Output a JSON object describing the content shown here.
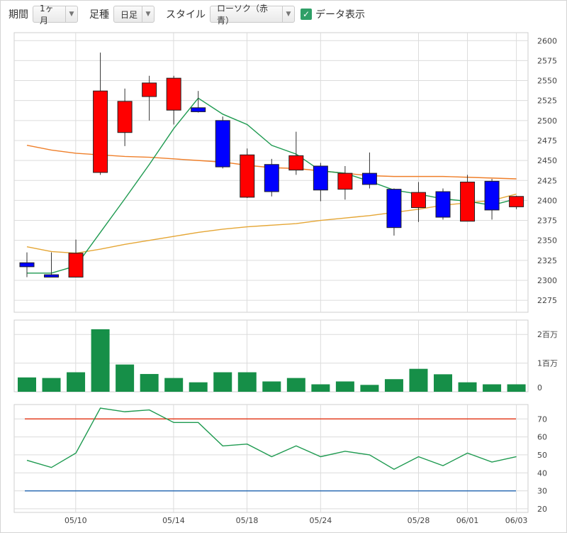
{
  "toolbar": {
    "period_label": "期間",
    "period_value": "1ヶ月",
    "foot_label": "足種",
    "foot_value": "日足",
    "style_label": "スタイル",
    "style_value": "ローソク（赤青）",
    "data_display_label": "データ表示",
    "data_display_checked": true
  },
  "colors": {
    "up_candle": "#ff0000",
    "down_candle": "#0000ff",
    "ma_short": "#1e9a50",
    "ma_mid": "#ef7f2a",
    "ma_long": "#e5a635",
    "volume_bar": "#168f48",
    "upper_band": "#e34224",
    "lower_band": "#2a6bb3",
    "grid": "#dcdcdc"
  },
  "chart_data": [
    {
      "type": "candlestick",
      "x_tick_labels": [
        "05/10",
        "05/14",
        "05/18",
        "05/24",
        "05/28",
        "06/01",
        "06/03"
      ],
      "y_tick_labels": [
        "2600",
        "2575",
        "2550",
        "2525",
        "2500",
        "2475",
        "2450",
        "2425",
        "2400",
        "2375",
        "2350",
        "2325",
        "2300",
        "2275"
      ],
      "ylim": [
        2260,
        2610
      ],
      "candles": [
        {
          "open": 2322,
          "high": 2335,
          "low": 2304,
          "close": 2317
        },
        {
          "open": 2307,
          "high": 2335,
          "low": 2305,
          "close": 2304
        },
        {
          "open": 2304,
          "high": 2351,
          "low": 2304,
          "close": 2334
        },
        {
          "open": 2435,
          "high": 2585,
          "low": 2432,
          "close": 2537
        },
        {
          "open": 2485,
          "high": 2540,
          "low": 2468,
          "close": 2524
        },
        {
          "open": 2530,
          "high": 2556,
          "low": 2500,
          "close": 2547
        },
        {
          "open": 2513,
          "high": 2556,
          "low": 2495,
          "close": 2553
        },
        {
          "open": 2516,
          "high": 2537,
          "low": 2510,
          "close": 2511
        },
        {
          "open": 2500,
          "high": 2505,
          "low": 2440,
          "close": 2442
        },
        {
          "open": 2404,
          "high": 2465,
          "low": 2403,
          "close": 2457
        },
        {
          "open": 2445,
          "high": 2452,
          "low": 2405,
          "close": 2411
        },
        {
          "open": 2438,
          "high": 2486,
          "low": 2432,
          "close": 2456
        },
        {
          "open": 2443,
          "high": 2447,
          "low": 2399,
          "close": 2413
        },
        {
          "open": 2414,
          "high": 2443,
          "low": 2401,
          "close": 2434
        },
        {
          "open": 2434,
          "high": 2460,
          "low": 2415,
          "close": 2420
        },
        {
          "open": 2414,
          "high": 2415,
          "low": 2356,
          "close": 2366
        },
        {
          "open": 2391,
          "high": 2423,
          "low": 2373,
          "close": 2410
        },
        {
          "open": 2411,
          "high": 2415,
          "low": 2376,
          "close": 2379
        },
        {
          "open": 2374,
          "high": 2432,
          "low": 2374,
          "close": 2423
        },
        {
          "open": 2424,
          "high": 2427,
          "low": 2376,
          "close": 2388
        },
        {
          "open": 2392,
          "high": 2406,
          "low": 2389,
          "close": 2405
        }
      ],
      "ma_short": [
        2309,
        2309,
        2318,
        2360,
        2402,
        2445,
        2490,
        2528,
        2508,
        2495,
        2469,
        2458,
        2437,
        2434,
        2424,
        2413,
        2408,
        2402,
        2399,
        2394,
        2402
      ],
      "ma_mid": [
        2469,
        2463,
        2459,
        2457,
        2455,
        2454,
        2452,
        2450,
        2448,
        2444,
        2441,
        2440,
        2437,
        2434,
        2431,
        2430,
        2430,
        2430,
        2429,
        2428,
        2427
      ],
      "ma_long": [
        2342,
        2336,
        2334,
        2339,
        2345,
        2350,
        2355,
        2360,
        2364,
        2367,
        2369,
        2371,
        2375,
        2378,
        2381,
        2385,
        2389,
        2394,
        2397,
        2400,
        2408
      ]
    },
    {
      "type": "bar",
      "y_tick_labels": [
        "2百万",
        "1百万",
        "0"
      ],
      "ylim": [
        0,
        2500000
      ],
      "values": [
        500000,
        480000,
        680000,
        2180000,
        950000,
        620000,
        480000,
        330000,
        680000,
        680000,
        360000,
        480000,
        260000,
        360000,
        240000,
        440000,
        800000,
        610000,
        330000,
        260000,
        260000
      ]
    },
    {
      "type": "line",
      "y_tick_labels": [
        "70",
        "60",
        "50",
        "40",
        "30",
        "20"
      ],
      "ylim": [
        18,
        78
      ],
      "upper_band": 70,
      "lower_band": 30,
      "values": [
        47,
        43,
        51,
        76,
        74,
        75,
        68,
        68,
        55,
        56,
        49,
        55,
        49,
        52,
        50,
        42,
        49,
        44,
        51,
        46,
        49
      ]
    }
  ]
}
